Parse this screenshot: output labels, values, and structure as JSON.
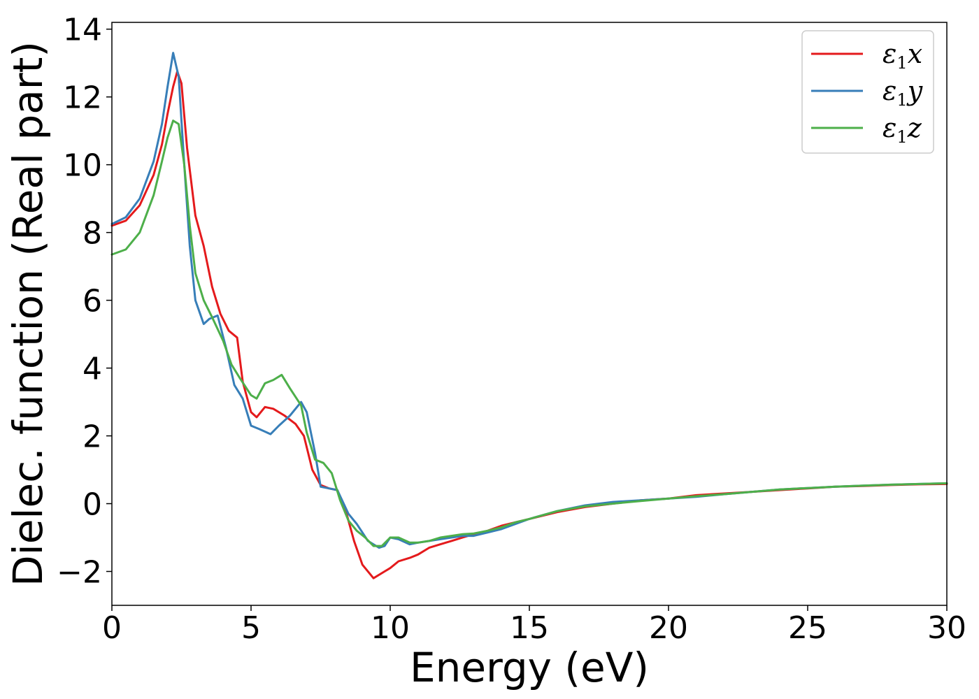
{
  "chart_data": {
    "type": "line",
    "xlabel": "Energy (eV)",
    "ylabel": "Dielec. function (Real part)",
    "xlim": [
      0,
      30
    ],
    "ylim": [
      -3,
      14.2
    ],
    "x_ticks": [
      0,
      5,
      10,
      15,
      20,
      25,
      30
    ],
    "x_tick_labels": [
      "0",
      "5",
      "10",
      "15",
      "20",
      "25",
      "30"
    ],
    "y_ticks": [
      -2,
      0,
      2,
      4,
      6,
      8,
      10,
      12,
      14
    ],
    "y_tick_labels": [
      "−2",
      "0",
      "2",
      "4",
      "6",
      "8",
      "10",
      "12",
      "14"
    ],
    "grid": false,
    "legend_position": "top-right",
    "series": [
      {
        "name": "ε1x",
        "symbol": "ε",
        "subscript": "1",
        "component": "x",
        "color": "#e41a1c",
        "x": [
          0,
          0.5,
          1.0,
          1.5,
          1.8,
          2.0,
          2.2,
          2.35,
          2.5,
          2.7,
          3.0,
          3.3,
          3.6,
          3.9,
          4.2,
          4.5,
          4.7,
          5.0,
          5.2,
          5.5,
          5.8,
          6.2,
          6.6,
          6.9,
          7.2,
          7.5,
          7.8,
          8.1,
          8.4,
          8.7,
          9.0,
          9.4,
          9.8,
          10.0,
          10.3,
          10.7,
          11.0,
          11.4,
          11.8,
          12.2,
          12.6,
          13.0,
          13.5,
          14.0,
          14.5,
          15.0,
          16.0,
          17.0,
          18.0,
          19.0,
          20.0,
          21.0,
          22.0,
          23.0,
          24.0,
          25.0,
          26.0,
          27.0,
          28.0,
          29.0,
          30.0
        ],
        "y": [
          8.2,
          8.35,
          8.8,
          9.7,
          10.6,
          11.5,
          12.3,
          12.75,
          12.4,
          10.5,
          8.5,
          7.6,
          6.4,
          5.6,
          5.1,
          4.9,
          3.6,
          2.7,
          2.55,
          2.85,
          2.8,
          2.6,
          2.35,
          2.0,
          1.0,
          0.55,
          0.45,
          0.4,
          -0.2,
          -1.1,
          -1.8,
          -2.2,
          -2.0,
          -1.9,
          -1.7,
          -1.6,
          -1.5,
          -1.3,
          -1.2,
          -1.1,
          -1.0,
          -0.9,
          -0.8,
          -0.65,
          -0.55,
          -0.45,
          -0.25,
          -0.1,
          0.0,
          0.1,
          0.15,
          0.25,
          0.3,
          0.35,
          0.4,
          0.45,
          0.5,
          0.52,
          0.55,
          0.57,
          0.58
        ]
      },
      {
        "name": "ε1y",
        "symbol": "ε",
        "subscript": "1",
        "component": "y",
        "color": "#377eb8",
        "x": [
          0,
          0.5,
          1.0,
          1.5,
          1.8,
          2.0,
          2.2,
          2.4,
          2.6,
          2.8,
          3.0,
          3.3,
          3.5,
          3.8,
          4.1,
          4.4,
          4.7,
          5.0,
          5.3,
          5.7,
          6.0,
          6.4,
          6.8,
          7.0,
          7.3,
          7.5,
          7.8,
          8.1,
          8.5,
          8.8,
          9.2,
          9.6,
          9.8,
          10.0,
          10.3,
          10.7,
          11.0,
          11.4,
          11.8,
          12.2,
          12.6,
          13.0,
          13.5,
          14.0,
          14.5,
          15.0,
          16.0,
          17.0,
          18.0,
          19.0,
          20.0,
          21.0,
          22.0,
          23.0,
          24.0,
          25.0,
          26.0,
          27.0,
          28.0,
          29.0,
          30.0
        ],
        "y": [
          8.25,
          8.45,
          9.0,
          10.1,
          11.2,
          12.3,
          13.3,
          12.6,
          10.0,
          7.6,
          6.0,
          5.3,
          5.45,
          5.55,
          4.6,
          3.5,
          3.1,
          2.3,
          2.2,
          2.05,
          2.3,
          2.6,
          3.0,
          2.7,
          1.5,
          0.5,
          0.45,
          0.4,
          -0.3,
          -0.6,
          -1.1,
          -1.3,
          -1.25,
          -1.0,
          -1.05,
          -1.2,
          -1.15,
          -1.1,
          -1.05,
          -1.0,
          -0.95,
          -0.95,
          -0.85,
          -0.75,
          -0.6,
          -0.45,
          -0.22,
          -0.05,
          0.05,
          0.1,
          0.15,
          0.2,
          0.28,
          0.35,
          0.42,
          0.46,
          0.5,
          0.53,
          0.56,
          0.58,
          0.6
        ]
      },
      {
        "name": "ε1z",
        "symbol": "ε",
        "subscript": "1",
        "component": "z",
        "color": "#4daf4a",
        "x": [
          0,
          0.5,
          1.0,
          1.5,
          1.8,
          2.0,
          2.2,
          2.4,
          2.6,
          2.8,
          3.0,
          3.3,
          3.6,
          4.0,
          4.3,
          4.6,
          5.0,
          5.2,
          5.5,
          5.8,
          6.1,
          6.4,
          6.8,
          7.0,
          7.3,
          7.6,
          7.9,
          8.2,
          8.5,
          8.8,
          9.1,
          9.4,
          9.7,
          10.0,
          10.3,
          10.7,
          11.0,
          11.4,
          11.8,
          12.2,
          12.6,
          13.0,
          13.5,
          14.0,
          14.5,
          15.0,
          16.0,
          17.0,
          18.0,
          19.0,
          20.0,
          21.0,
          22.0,
          23.0,
          24.0,
          25.0,
          26.0,
          27.0,
          28.0,
          29.0,
          30.0
        ],
        "y": [
          7.35,
          7.5,
          8.0,
          9.1,
          10.1,
          10.8,
          11.3,
          11.2,
          10.0,
          8.2,
          6.8,
          6.0,
          5.5,
          4.8,
          4.1,
          3.7,
          3.2,
          3.1,
          3.55,
          3.65,
          3.8,
          3.4,
          2.9,
          2.1,
          1.3,
          1.2,
          0.9,
          0.1,
          -0.5,
          -0.8,
          -1.0,
          -1.25,
          -1.25,
          -1.0,
          -1.0,
          -1.15,
          -1.15,
          -1.1,
          -1.0,
          -0.95,
          -0.9,
          -0.88,
          -0.8,
          -0.7,
          -0.55,
          -0.45,
          -0.22,
          -0.08,
          0.0,
          0.08,
          0.15,
          0.22,
          0.28,
          0.35,
          0.42,
          0.46,
          0.5,
          0.53,
          0.56,
          0.58,
          0.6
        ]
      }
    ]
  }
}
